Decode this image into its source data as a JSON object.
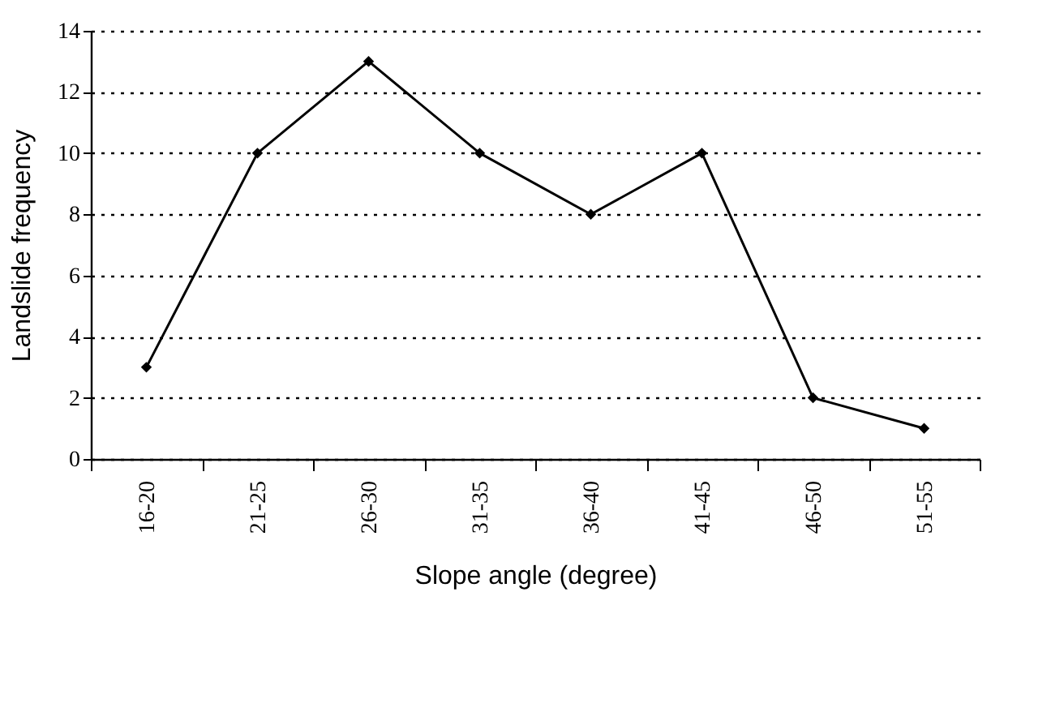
{
  "chart_data": {
    "type": "line",
    "xlabel": "Slope angle (degree)",
    "ylabel": "Landslide frequency",
    "categories": [
      "16-20",
      "21-25",
      "26-30",
      "31-35",
      "36-40",
      "41-45",
      "46-50",
      "51-55"
    ],
    "series": [
      {
        "color": "#000000",
        "values": [
          3,
          10,
          13,
          10,
          8,
          10,
          2,
          1
        ]
      }
    ],
    "ylim": [
      0,
      14
    ],
    "yticks": [
      0,
      2,
      4,
      6,
      8,
      10,
      12,
      14
    ],
    "grid": "y",
    "marker": "diamond",
    "line_style": "solid"
  }
}
